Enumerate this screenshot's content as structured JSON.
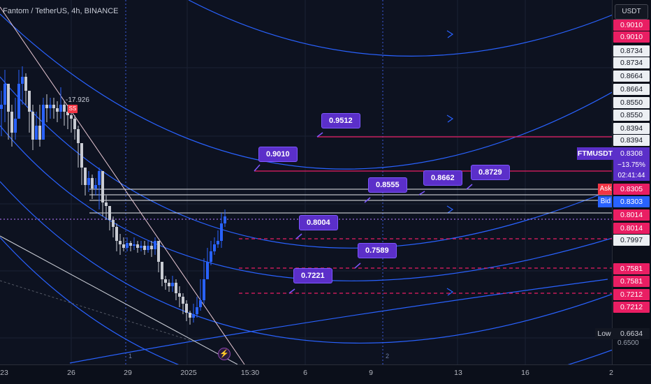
{
  "header": {
    "symbol_title": "Fantom / TetherUS, 4h, BINANCE",
    "currency_button": "USDT"
  },
  "price_scale": {
    "labels": [
      {
        "text": "0.9010",
        "style": "red"
      },
      {
        "text": "0.9010",
        "style": "red"
      },
      {
        "text": "0.8734",
        "style": "white"
      },
      {
        "text": "0.8734",
        "style": "white"
      },
      {
        "text": "0.8664",
        "style": "white"
      },
      {
        "text": "0.8664",
        "style": "white"
      },
      {
        "text": "0.8550",
        "style": "white"
      },
      {
        "text": "0.8550",
        "style": "white"
      },
      {
        "text": "0.8394",
        "style": "white"
      },
      {
        "text": "0.8394",
        "style": "white"
      },
      {
        "text": "0.8014",
        "style": "red"
      },
      {
        "text": "0.8014",
        "style": "red"
      },
      {
        "text": "0.7997",
        "style": "white"
      },
      {
        "text": "0.7581",
        "style": "red"
      },
      {
        "text": "0.7581",
        "style": "red"
      },
      {
        "text": "0.7212",
        "style": "red"
      },
      {
        "text": "0.7212",
        "style": "red"
      }
    ],
    "ask_label": "Ask",
    "ask_price": "0.8305",
    "bid_label": "Bid",
    "bid_price": "0.8303",
    "low_label": "Low",
    "low_price": "0.6634",
    "bottom_tick": "0.6500"
  },
  "info_box": {
    "symbol": "FTMUSDT",
    "price": "0.8308",
    "change": "−13.75%",
    "countdown": "02:41:44"
  },
  "annotations": [
    {
      "text": "0.9512"
    },
    {
      "text": "0.9010"
    },
    {
      "text": "0.8555"
    },
    {
      "text": "0.8662"
    },
    {
      "text": "0.8729"
    },
    {
      "text": "0.8004"
    },
    {
      "text": "0.7589"
    },
    {
      "text": "0.7221"
    }
  ],
  "indicator": {
    "value_label": "-17.926",
    "tag": "SS"
  },
  "time_axis": {
    "labels": [
      "23",
      "26",
      "29",
      "2025",
      "15:30",
      "6",
      "9",
      "13",
      "16",
      "2"
    ]
  },
  "markers": [
    "1",
    "2"
  ],
  "colors": {
    "background": "#0d1220",
    "accent_purple": "#5b2fc9",
    "red_line": "#e91e63",
    "blue_curve": "#2962ff",
    "bull_candle": "#2962ff",
    "bear_candle": "#c9ccd3"
  }
}
